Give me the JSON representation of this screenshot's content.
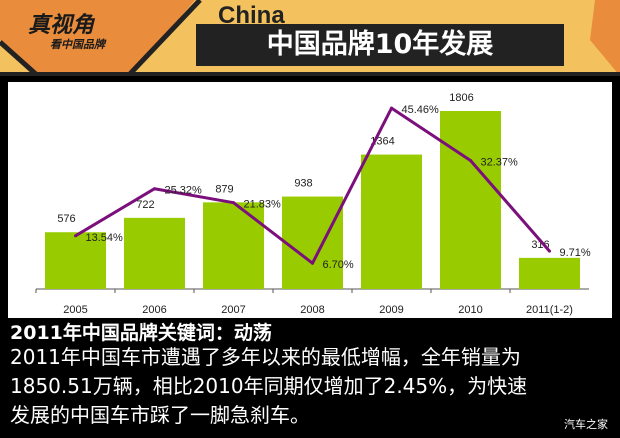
{
  "banner": {
    "logo_main": "真视角",
    "logo_sub": "看中国品牌",
    "china_word": "China",
    "title": "中国品牌10年发展"
  },
  "chart_data": {
    "type": "bar",
    "categories": [
      "2005",
      "2006",
      "2007",
      "2008",
      "2009",
      "2010",
      "2011(1-2)"
    ],
    "series": [
      {
        "name": "sales",
        "type": "bar",
        "values": [
          576,
          722,
          879,
          938,
          1364,
          1806,
          316
        ],
        "labels": [
          "576",
          "722",
          "879",
          "938",
          "1364",
          "1806",
          "316"
        ],
        "color": "#99cc00"
      },
      {
        "name": "growth",
        "type": "line",
        "values": [
          13.54,
          25.32,
          21.83,
          6.7,
          45.46,
          32.37,
          9.71
        ],
        "labels": [
          "13.54%",
          "25.32%",
          "21.83%",
          "6.70%",
          "45.46%",
          "32.37%",
          "9.71%"
        ],
        "color": "#7b0f7b"
      }
    ],
    "title": "",
    "xlabel": "",
    "ylabel": "",
    "ylim": [
      0,
      1806
    ],
    "y2lim": [
      0,
      50
    ],
    "grid": false,
    "legend": "none"
  },
  "text": {
    "keyword": "2011年中国品牌关键词：动荡",
    "lines": [
      "2011年中国车市遭遇了多年以来的最低增幅，全年销量为",
      "1850.51万辆，相比2010年同期仅增加了2.45%，为快速",
      "发展的中国车市踩了一脚急刹车。"
    ],
    "watermark": "汽车之家"
  }
}
